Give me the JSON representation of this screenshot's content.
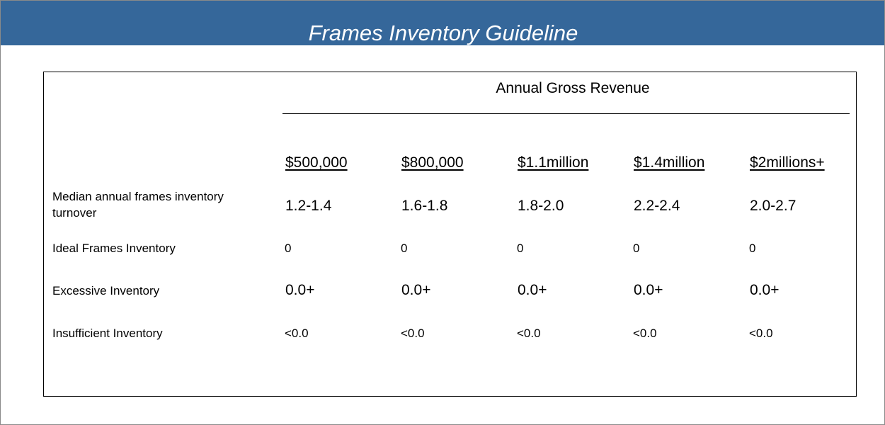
{
  "title": "Frames Inventory Guideline",
  "colors": {
    "title_bar": "#35679a",
    "title_text": "#ffffff",
    "text": "#000000",
    "border": "#000000"
  },
  "table": {
    "group_heading": "Annual Gross Revenue",
    "columns": [
      "$500,000",
      "$800,000",
      "$1.1million",
      "$1.4million",
      "$2millions+"
    ],
    "rows": [
      {
        "label_line1": "Median annual frames inventory",
        "label_line2": "turnover",
        "values": [
          "1.2-1.4",
          "1.6-1.8",
          "1.8-2.0",
          "2.2-2.4",
          "2.0-2.7"
        ]
      },
      {
        "label": "Ideal Frames Inventory",
        "values": [
          "0",
          "0",
          "0",
          "0",
          "0"
        ]
      },
      {
        "label": "Excessive Inventory",
        "values": [
          "0.0+",
          "0.0+",
          "0.0+",
          "0.0+",
          "0.0+"
        ]
      },
      {
        "label": "Insufficient Inventory",
        "values": [
          "<0.0",
          "<0.0",
          "<0.0",
          "<0.0",
          "<0.0"
        ]
      }
    ]
  }
}
